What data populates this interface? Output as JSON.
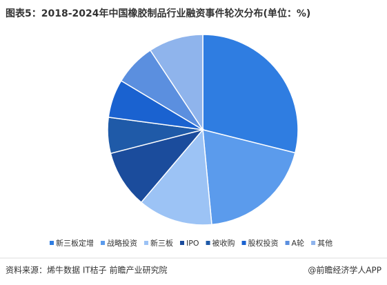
{
  "chart_data": {
    "type": "pie",
    "title": "图表5：2018-2024年中国橡胶制品行业融资事件轮次分布(单位：%)",
    "categories": [
      "新三板定增",
      "战略投资",
      "新三板",
      "IPO",
      "被收购",
      "股权投资",
      "A轮",
      "其他"
    ],
    "values": [
      28.9,
      19.6,
      12.7,
      9.8,
      6.1,
      6.5,
      7.1,
      9.3
    ],
    "colors": [
      "#2f7de1",
      "#5b9bec",
      "#9cc3f5",
      "#1b4c9c",
      "#1f5aa8",
      "#1a62d0",
      "#5b8fdf",
      "#8fb4ec"
    ]
  },
  "footer": {
    "source": "资料来源：烯牛数据 IT桔子 前瞻产业研究院",
    "brand": "@前瞻经济学人APP"
  }
}
